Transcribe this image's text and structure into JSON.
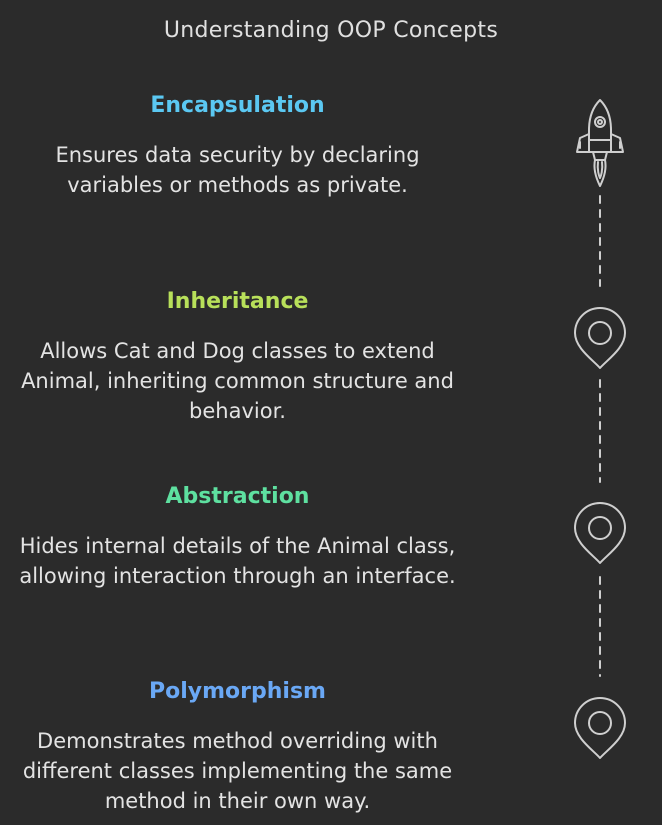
{
  "title": "Understanding OOP Concepts",
  "concepts": [
    {
      "heading": "Encapsulation",
      "description": "Ensures data security by declaring variables or methods as private.",
      "color": "#5bc8f2",
      "icon": "rocket-icon"
    },
    {
      "heading": "Inheritance",
      "description": "Allows Cat and Dog classes to extend Animal, inheriting common structure and behavior.",
      "color": "#b8e05a",
      "icon": "map-pin-icon"
    },
    {
      "heading": "Abstraction",
      "description": "Hides internal details of the Animal class, allowing interaction through an interface.",
      "color": "#5ee0a0",
      "icon": "map-pin-icon"
    },
    {
      "heading": "Polymorphism",
      "description": "Demonstrates method overriding with different classes implementing the same method in their own way.",
      "color": "#6aa8f5",
      "icon": "map-pin-icon"
    }
  ],
  "timeline_color": "#cfcfcf"
}
